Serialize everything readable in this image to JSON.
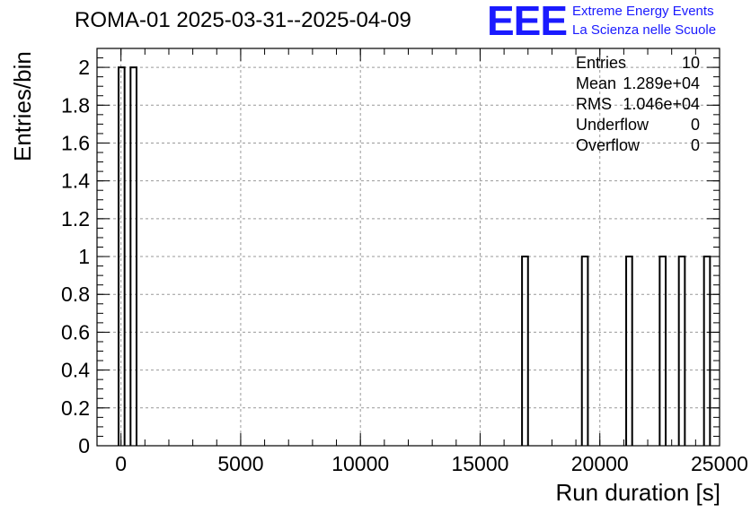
{
  "title": "ROMA-01 2025-03-31--2025-04-09",
  "logo": {
    "mark": "EEE",
    "line1": "Extreme Energy Events",
    "line2": "La Scienza nelle Scuole",
    "color": "#1a1aff"
  },
  "stats": [
    {
      "key": "Entries",
      "value": "10"
    },
    {
      "key": "Mean",
      "value": "1.289e+04"
    },
    {
      "key": "RMS",
      "value": "1.046e+04"
    },
    {
      "key": "Underflow",
      "value": "0"
    },
    {
      "key": "Overflow",
      "value": "0"
    }
  ],
  "chart_data": {
    "type": "bar",
    "title": "ROMA-01 2025-03-31--2025-04-09",
    "xlabel": "Run duration [s]",
    "ylabel": "Entries/bin",
    "xlim": [
      -1000,
      25000
    ],
    "ylim": [
      0,
      2.1
    ],
    "grid": true,
    "xticks": [
      "0",
      "5000",
      "10000",
      "15000",
      "20000",
      "25000"
    ],
    "yticks": [
      "0",
      "0.2",
      "0.4",
      "0.6",
      "0.8",
      "1",
      "1.2",
      "1.4",
      "1.6",
      "1.8",
      "2"
    ],
    "bins": [
      {
        "x0": -100,
        "x1": 150,
        "value": 2
      },
      {
        "x0": 400,
        "x1": 650,
        "value": 2
      },
      {
        "x0": 16750,
        "x1": 17000,
        "value": 1
      },
      {
        "x0": 19250,
        "x1": 19500,
        "value": 1
      },
      {
        "x0": 21100,
        "x1": 21350,
        "value": 1
      },
      {
        "x0": 22500,
        "x1": 22750,
        "value": 1
      },
      {
        "x0": 23300,
        "x1": 23550,
        "value": 1
      },
      {
        "x0": 24350,
        "x1": 24600,
        "value": 1
      }
    ]
  }
}
